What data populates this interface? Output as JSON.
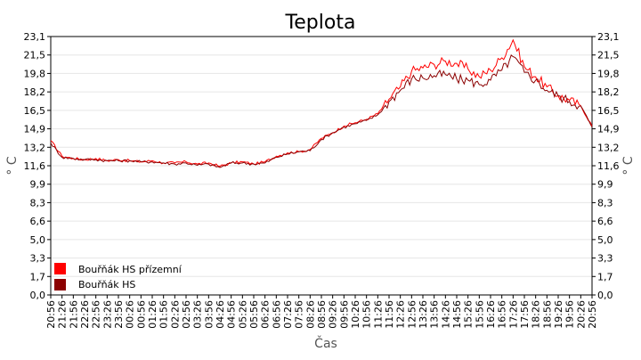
{
  "chart_data": {
    "type": "line",
    "title": "Teplota",
    "xlabel": "Čas",
    "ylabel": "° C",
    "ylabel_right": "° C",
    "ylim": [
      0,
      23.1
    ],
    "y_ticks": [
      "0,0",
      "1,7",
      "3,3",
      "5,0",
      "6,6",
      "8,3",
      "9,9",
      "11,6",
      "13,2",
      "14,9",
      "16,5",
      "18,2",
      "19,8",
      "21,5",
      "23,1"
    ],
    "y_tick_values": [
      0.0,
      1.65,
      3.3,
      4.95,
      6.6,
      8.25,
      9.9,
      11.55,
      13.2,
      14.85,
      16.5,
      18.15,
      19.8,
      21.45,
      23.1
    ],
    "x_ticks": [
      "20:56",
      "21:26",
      "21:56",
      "22:26",
      "22:56",
      "23:26",
      "23:56",
      "00:26",
      "00:56",
      "01:26",
      "01:56",
      "02:26",
      "02:56",
      "03:26",
      "03:56",
      "04:26",
      "04:56",
      "05:26",
      "05:56",
      "06:26",
      "06:56",
      "07:26",
      "07:56",
      "08:26",
      "08:56",
      "09:26",
      "09:56",
      "10:26",
      "10:56",
      "11:26",
      "11:56",
      "12:26",
      "12:56",
      "13:26",
      "13:56",
      "14:26",
      "14:56",
      "15:26",
      "15:56",
      "16:26",
      "16:56",
      "17:26",
      "17:56",
      "18:26",
      "18:56",
      "19:26",
      "19:56",
      "20:26",
      "20:56"
    ],
    "grid": true,
    "legend_placement": "bottom-left",
    "series": [
      {
        "name": "Bouřňák HS přízemní",
        "color": "#ff0000",
        "values": [
          13.8,
          12.4,
          12.2,
          12.1,
          12.2,
          12.0,
          12.1,
          12.0,
          11.9,
          12.0,
          11.8,
          11.8,
          11.9,
          11.7,
          11.8,
          11.5,
          11.8,
          11.9,
          11.7,
          11.9,
          12.4,
          12.7,
          12.8,
          13.0,
          14.0,
          14.5,
          15.1,
          15.4,
          15.7,
          16.2,
          17.5,
          18.6,
          20.0,
          20.3,
          20.6,
          20.9,
          20.7,
          20.2,
          19.5,
          20.1,
          21.2,
          22.8,
          20.4,
          19.5,
          18.6,
          17.8,
          17.4,
          16.9,
          15.1
        ]
      },
      {
        "name": "Bouřňák HS",
        "color": "#8b0000",
        "values": [
          13.6,
          12.3,
          12.2,
          12.1,
          12.1,
          12.0,
          12.0,
          12.0,
          11.9,
          11.9,
          11.8,
          11.7,
          11.8,
          11.6,
          11.7,
          11.4,
          11.8,
          11.8,
          11.7,
          11.8,
          12.3,
          12.6,
          12.8,
          12.9,
          13.9,
          14.5,
          15.0,
          15.3,
          15.6,
          16.1,
          17.3,
          18.3,
          19.3,
          19.4,
          19.6,
          19.7,
          19.3,
          19.2,
          18.8,
          19.2,
          20.1,
          21.3,
          19.9,
          19.2,
          18.3,
          17.8,
          17.3,
          16.9,
          15.0
        ]
      }
    ]
  }
}
